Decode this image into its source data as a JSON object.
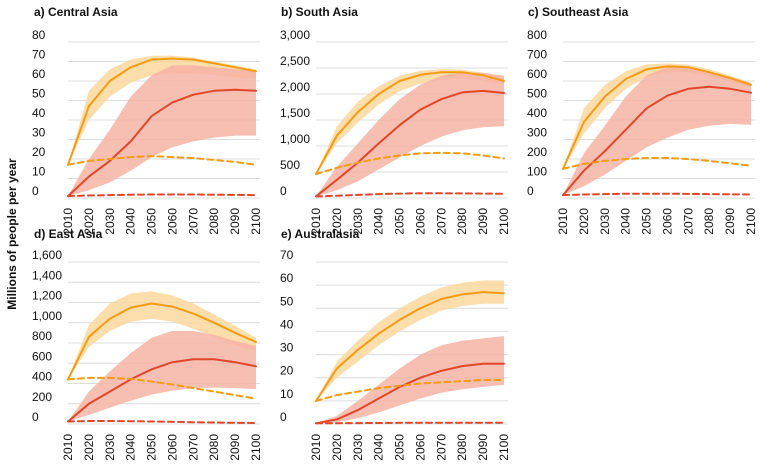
{
  "figure": {
    "ylabel": "Millions of people per year",
    "colors": {
      "orange": "#f39c12",
      "orange_band": "#fbd79e",
      "red": "#e0472a",
      "red_band": "#f6b3a4",
      "grid": "#dcdcdc"
    }
  },
  "chart_data": [
    {
      "type": "line",
      "title": "a) Central Asia",
      "x": [
        2010,
        2020,
        2030,
        2040,
        2050,
        2060,
        2070,
        2080,
        2090,
        2100
      ],
      "xticks": [
        "2010",
        "2020",
        "2030",
        "2040",
        "2050",
        "2060",
        "2070",
        "2080",
        "2090",
        "2100"
      ],
      "ylim": [
        0,
        80
      ],
      "yticks": [
        0,
        10,
        20,
        30,
        40,
        50,
        60,
        70,
        80
      ],
      "ytick_labels": [
        "0",
        "10",
        "20",
        "30",
        "40",
        "50",
        "60",
        "70",
        "80"
      ],
      "series": [
        {
          "style": "solid-orange",
          "values": [
            17,
            47,
            60,
            67,
            71,
            71.5,
            71,
            69,
            67,
            65
          ],
          "lower": [
            17,
            40,
            52,
            59,
            63,
            64,
            64,
            63,
            62,
            61
          ],
          "upper": [
            17,
            55,
            66,
            71,
            73,
            73,
            72,
            70,
            68,
            66
          ]
        },
        {
          "style": "solid-red",
          "values": [
            1,
            11,
            19,
            29,
            42,
            49,
            53,
            55,
            55.5,
            55
          ],
          "lower": [
            1,
            4,
            8,
            14,
            21,
            26,
            29,
            31,
            32,
            32
          ],
          "upper": [
            1,
            20,
            35,
            52,
            63,
            68,
            68,
            67,
            66,
            65
          ]
        },
        {
          "style": "dashed-orange",
          "values": [
            17,
            19,
            20,
            21,
            21.5,
            21,
            20.5,
            19.5,
            18.5,
            17
          ]
        },
        {
          "style": "dashed-red",
          "values": [
            1,
            1.3,
            1.5,
            1.7,
            1.8,
            1.8,
            1.8,
            1.7,
            1.6,
            1.5
          ]
        }
      ]
    },
    {
      "type": "line",
      "title": "b) South Asia",
      "x": [
        2010,
        2020,
        2030,
        2040,
        2050,
        2060,
        2070,
        2080,
        2090,
        2100
      ],
      "xticks": [
        "2010",
        "2020",
        "2030",
        "2040",
        "2050",
        "2060",
        "2070",
        "2080",
        "2090",
        "2100"
      ],
      "ylim": [
        0,
        3000
      ],
      "yticks": [
        0,
        500,
        1000,
        1500,
        2000,
        2500,
        3000
      ],
      "ytick_labels": [
        "0",
        "500",
        "1,000",
        "1,500",
        "2,000",
        "2,500",
        "3,000"
      ],
      "series": [
        {
          "style": "solid-orange",
          "values": [
            460,
            1200,
            1650,
            2000,
            2250,
            2370,
            2420,
            2420,
            2360,
            2250
          ],
          "lower": [
            460,
            1050,
            1450,
            1800,
            2050,
            2200,
            2280,
            2300,
            2260,
            2180
          ],
          "upper": [
            460,
            1380,
            1850,
            2150,
            2350,
            2450,
            2480,
            2470,
            2410,
            2310
          ]
        },
        {
          "style": "solid-red",
          "values": [
            30,
            350,
            680,
            1050,
            1400,
            1700,
            1900,
            2030,
            2060,
            2020
          ],
          "lower": [
            30,
            150,
            320,
            550,
            780,
            1000,
            1180,
            1300,
            1360,
            1380
          ],
          "upper": [
            30,
            600,
            1050,
            1500,
            1900,
            2180,
            2350,
            2420,
            2410,
            2350
          ]
        },
        {
          "style": "dashed-orange",
          "values": [
            460,
            580,
            680,
            760,
            820,
            860,
            870,
            860,
            820,
            760
          ]
        },
        {
          "style": "dashed-red",
          "values": [
            30,
            45,
            60,
            75,
            85,
            90,
            90,
            88,
            85,
            80
          ]
        }
      ]
    },
    {
      "type": "line",
      "title": "c) Southeast Asia",
      "x": [
        2010,
        2020,
        2030,
        2040,
        2050,
        2060,
        2070,
        2080,
        2090,
        2100
      ],
      "xticks": [
        "2010",
        "2020",
        "2030",
        "2040",
        "2050",
        "2060",
        "2070",
        "2080",
        "2090",
        "2100"
      ],
      "ylim": [
        0,
        800
      ],
      "yticks": [
        0,
        100,
        200,
        300,
        400,
        500,
        600,
        700,
        800
      ],
      "ytick_labels": [
        "0",
        "100",
        "200",
        "300",
        "400",
        "500",
        "600",
        "700",
        "800"
      ],
      "series": [
        {
          "style": "solid-orange",
          "values": [
            150,
            390,
            520,
            610,
            660,
            675,
            670,
            645,
            615,
            580
          ],
          "lower": [
            150,
            330,
            460,
            560,
            620,
            645,
            645,
            625,
            598,
            565
          ],
          "upper": [
            150,
            460,
            580,
            650,
            685,
            690,
            683,
            660,
            628,
            592
          ]
        },
        {
          "style": "solid-red",
          "values": [
            15,
            140,
            240,
            350,
            460,
            525,
            560,
            570,
            560,
            540
          ],
          "lower": [
            15,
            60,
            120,
            190,
            260,
            310,
            350,
            370,
            380,
            375
          ],
          "upper": [
            15,
            230,
            370,
            520,
            630,
            670,
            670,
            650,
            620,
            590
          ]
        },
        {
          "style": "dashed-orange",
          "values": [
            150,
            175,
            190,
            200,
            205,
            205,
            200,
            190,
            178,
            165
          ]
        },
        {
          "style": "dashed-red",
          "values": [
            15,
            18,
            20,
            22,
            22,
            22,
            21,
            20,
            19,
            18
          ]
        }
      ]
    },
    {
      "type": "line",
      "title": "d) East Asia",
      "x": [
        2010,
        2020,
        2030,
        2040,
        2050,
        2060,
        2070,
        2080,
        2090,
        2100
      ],
      "xticks": [
        "2010",
        "2020",
        "2030",
        "2040",
        "2050",
        "2060",
        "2070",
        "2080",
        "2090",
        "2100"
      ],
      "ylim": [
        0,
        1600
      ],
      "yticks": [
        0,
        200,
        400,
        600,
        800,
        1000,
        1200,
        1400,
        1600
      ],
      "ytick_labels": [
        "0",
        "200",
        "400",
        "600",
        "800",
        "1,000",
        "1,200",
        "1,400",
        "1,600"
      ],
      "series": [
        {
          "style": "solid-orange",
          "values": [
            440,
            860,
            1040,
            1150,
            1190,
            1160,
            1090,
            1000,
            900,
            810
          ],
          "lower": [
            440,
            760,
            920,
            1010,
            1040,
            1010,
            940,
            860,
            780,
            720
          ],
          "upper": [
            440,
            980,
            1190,
            1290,
            1310,
            1270,
            1190,
            1080,
            970,
            850
          ]
        },
        {
          "style": "solid-red",
          "values": [
            25,
            200,
            320,
            440,
            540,
            610,
            640,
            640,
            610,
            570
          ],
          "lower": [
            25,
            90,
            160,
            230,
            290,
            330,
            355,
            360,
            355,
            345
          ],
          "upper": [
            25,
            320,
            520,
            700,
            850,
            920,
            920,
            880,
            820,
            770
          ]
        },
        {
          "style": "dashed-orange",
          "values": [
            440,
            455,
            455,
            445,
            420,
            390,
            355,
            320,
            285,
            250
          ]
        },
        {
          "style": "dashed-red",
          "values": [
            25,
            30,
            30,
            28,
            25,
            22,
            18,
            15,
            12,
            10
          ]
        }
      ]
    },
    {
      "type": "line",
      "title": "e) Australasia",
      "x": [
        2010,
        2020,
        2030,
        2040,
        2050,
        2060,
        2070,
        2080,
        2090,
        2100
      ],
      "xticks": [
        "2010",
        "2020",
        "2030",
        "2040",
        "2050",
        "2060",
        "2070",
        "2080",
        "2090",
        "2100"
      ],
      "ylim": [
        0,
        70
      ],
      "yticks": [
        0,
        10,
        20,
        30,
        40,
        50,
        60,
        70
      ],
      "ytick_labels": [
        "0",
        "10",
        "20",
        "30",
        "40",
        "50",
        "60",
        "70"
      ],
      "series": [
        {
          "style": "solid-orange",
          "values": [
            10,
            24,
            32,
            39,
            45,
            50,
            54,
            56,
            57,
            56.5
          ],
          "lower": [
            10,
            20,
            27,
            34,
            40,
            45,
            49,
            51,
            52,
            52
          ],
          "upper": [
            10,
            27,
            36,
            44,
            50,
            55,
            59,
            61,
            62,
            62
          ]
        },
        {
          "style": "solid-red",
          "values": [
            0.3,
            2,
            6,
            11,
            16,
            20,
            23,
            25,
            26,
            26
          ],
          "lower": [
            0.3,
            0.8,
            2.5,
            5,
            8,
            11,
            13.5,
            15,
            16,
            17
          ],
          "upper": [
            0.3,
            3.5,
            10,
            17,
            24,
            30,
            34,
            36,
            37,
            38
          ]
        },
        {
          "style": "dashed-orange",
          "values": [
            10,
            12.5,
            14,
            15.5,
            16.5,
            17.5,
            18,
            18.5,
            19,
            19
          ]
        },
        {
          "style": "dashed-red",
          "values": [
            0.3,
            0.35,
            0.4,
            0.45,
            0.5,
            0.5,
            0.5,
            0.5,
            0.5,
            0.5
          ]
        }
      ]
    }
  ]
}
